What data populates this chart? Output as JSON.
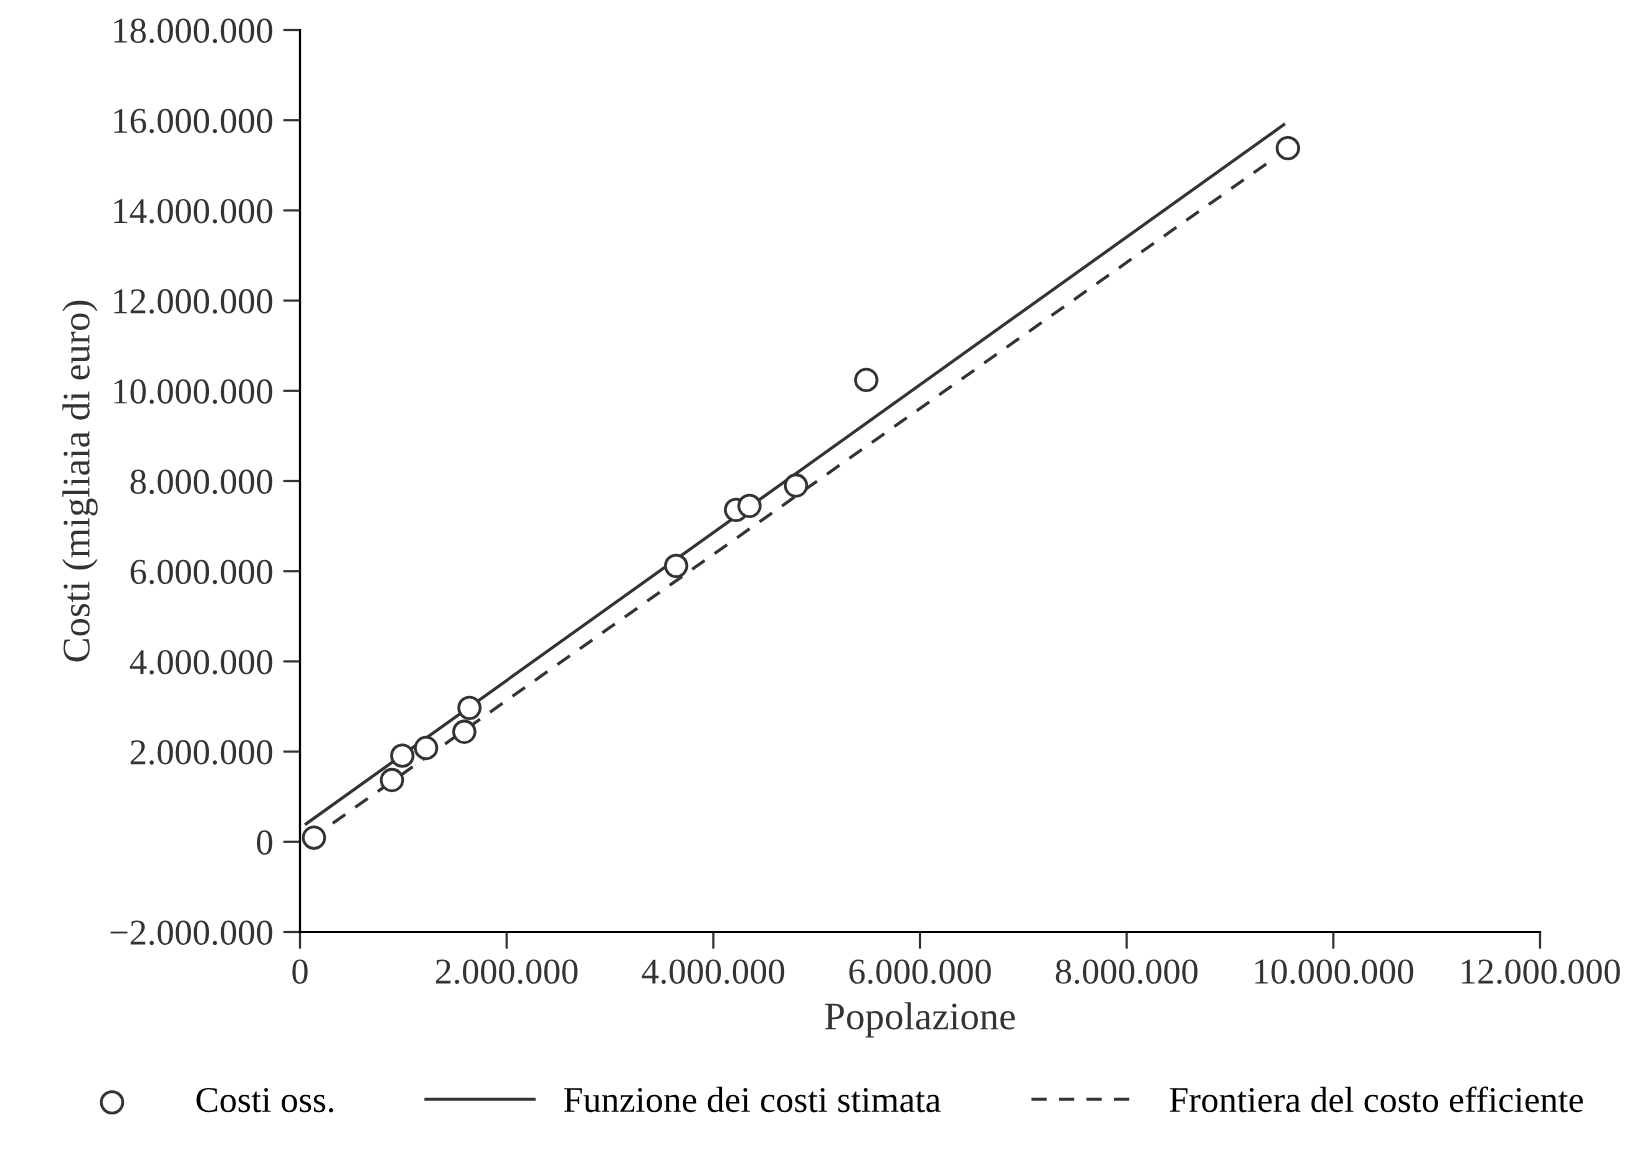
{
  "chart_data": {
    "type": "scatter",
    "xlabel": "Popolazione",
    "ylabel": "Costi (migliaia di euro)",
    "xlim": [
      0,
      12000000
    ],
    "ylim": [
      -2000000,
      18000000
    ],
    "xticks": [
      {
        "value": 0,
        "label": "0"
      },
      {
        "value": 2000000,
        "label": "2.000.000"
      },
      {
        "value": 4000000,
        "label": "4.000.000"
      },
      {
        "value": 6000000,
        "label": "6.000.000"
      },
      {
        "value": 8000000,
        "label": "8.000.000"
      },
      {
        "value": 10000000,
        "label": "10.000.000"
      },
      {
        "value": 12000000,
        "label": "12.000.000"
      }
    ],
    "yticks": [
      {
        "value": -2000000,
        "label": "−2.000.000"
      },
      {
        "value": 0,
        "label": "0"
      },
      {
        "value": 2000000,
        "label": "2.000.000"
      },
      {
        "value": 4000000,
        "label": "4.000.000"
      },
      {
        "value": 6000000,
        "label": "6.000.000"
      },
      {
        "value": 8000000,
        "label": "8.000.000"
      },
      {
        "value": 10000000,
        "label": "10.000.000"
      },
      {
        "value": 12000000,
        "label": "12.000.000"
      },
      {
        "value": 14000000,
        "label": "14.000.000"
      },
      {
        "value": 16000000,
        "label": "16.000.000"
      },
      {
        "value": 18000000,
        "label": "18.000.000"
      }
    ],
    "grid": false,
    "legend": "bottom",
    "series": [
      {
        "name": "Costi oss.",
        "marker": "circle",
        "color": "#333333",
        "x": [
          135000,
          890000,
          990000,
          1220000,
          1590000,
          1640000,
          3640000,
          4220000,
          4350000,
          4800000,
          5480000,
          9560000
        ],
        "values": [
          90000,
          1370000,
          1910000,
          2080000,
          2440000,
          2970000,
          6120000,
          7360000,
          7450000,
          7900000,
          10240000,
          15380000
        ]
      },
      {
        "name": "Funzione dei costi stimata",
        "type": "line",
        "line_style": "solid",
        "color": "#333333",
        "x": [
          60000,
          9520000
        ],
        "values": [
          400000,
          15900000
        ]
      },
      {
        "name": "Frontiera del costo efficiente",
        "type": "line",
        "line_style": "dashed",
        "color": "#333333",
        "x": [
          100000,
          9430000
        ],
        "values": [
          60000,
          15160000
        ]
      }
    ]
  }
}
